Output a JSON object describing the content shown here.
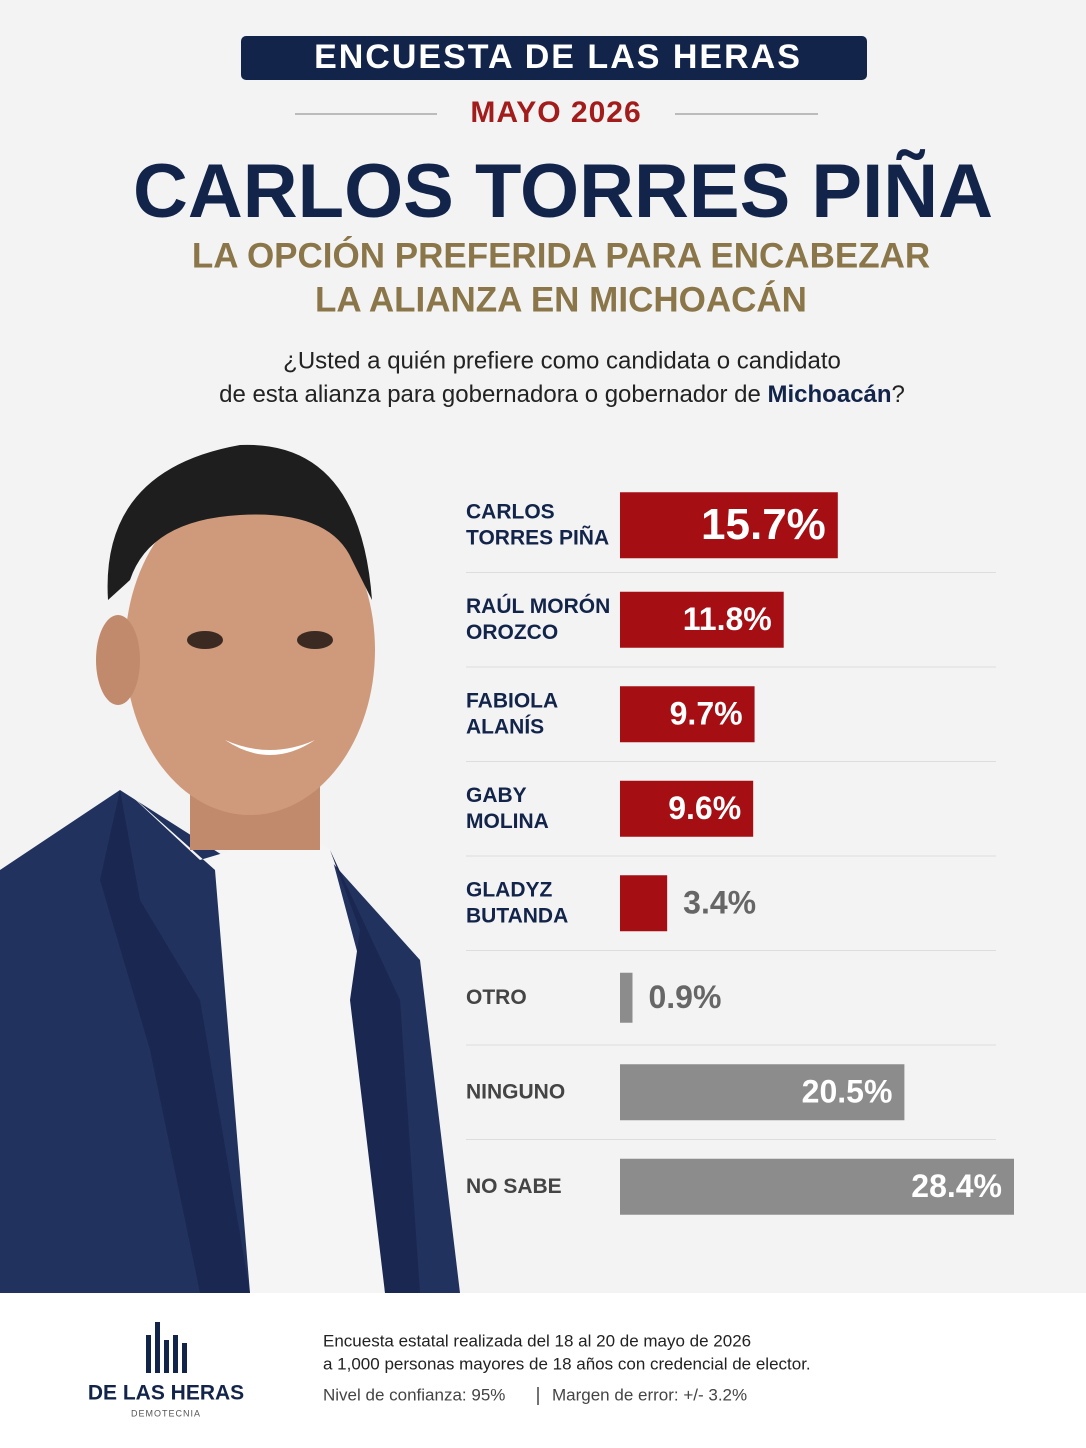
{
  "header": {
    "banner": "ENCUESTA DE LAS HERAS",
    "date": "MAYO 2026",
    "headline": "CARLOS TORRES PIÑA",
    "subtitle_line1": "LA OPCIÓN PREFERIDA PARA ENCABEZAR",
    "subtitle_line2": "LA ALIANZA EN MICHOACÁN",
    "question_line1": "¿Usted a quién prefiere como candidata o candidato",
    "question_line2": "de esta alianza para gobernadora o gobernador de ",
    "question_bold": "Michoacán",
    "question_end": "?"
  },
  "chart_data": {
    "type": "bar",
    "orientation": "horizontal",
    "categories": [
      "CARLOS\nTORRES PIÑA",
      "RAÚL MORÓN\nOROZCO",
      "FABIOLA\nALANÍS",
      "GABY\nMOLINA",
      "GLADYZ\nBUTANDA",
      "OTRO",
      "NINGUNO",
      "NO SABE"
    ],
    "values": [
      15.7,
      11.8,
      9.7,
      9.6,
      3.4,
      0.9,
      20.5,
      28.4
    ],
    "value_labels": [
      "15.7%",
      "11.8%",
      "9.7%",
      "9.6%",
      "3.4%",
      "0.9%",
      "20.5%",
      "28.4%"
    ],
    "colors": [
      "#a50f14",
      "#a50f14",
      "#a50f14",
      "#a50f14",
      "#a50f14",
      "#8c8c8c",
      "#8c8c8c",
      "#8c8c8c"
    ]
  },
  "footer": {
    "logo_name": "DE LAS HERAS",
    "logo_sub": "DEMOTECNIA",
    "note_line1": "Encuesta estatal realizada del 18 al 20 de mayo de 2026",
    "note_line2": "a 1,000 personas mayores de 18 años con credencial de elector.",
    "confidence": "Nivel de confianza: 95%",
    "margin": "Margen de error: +/- 3.2%"
  }
}
